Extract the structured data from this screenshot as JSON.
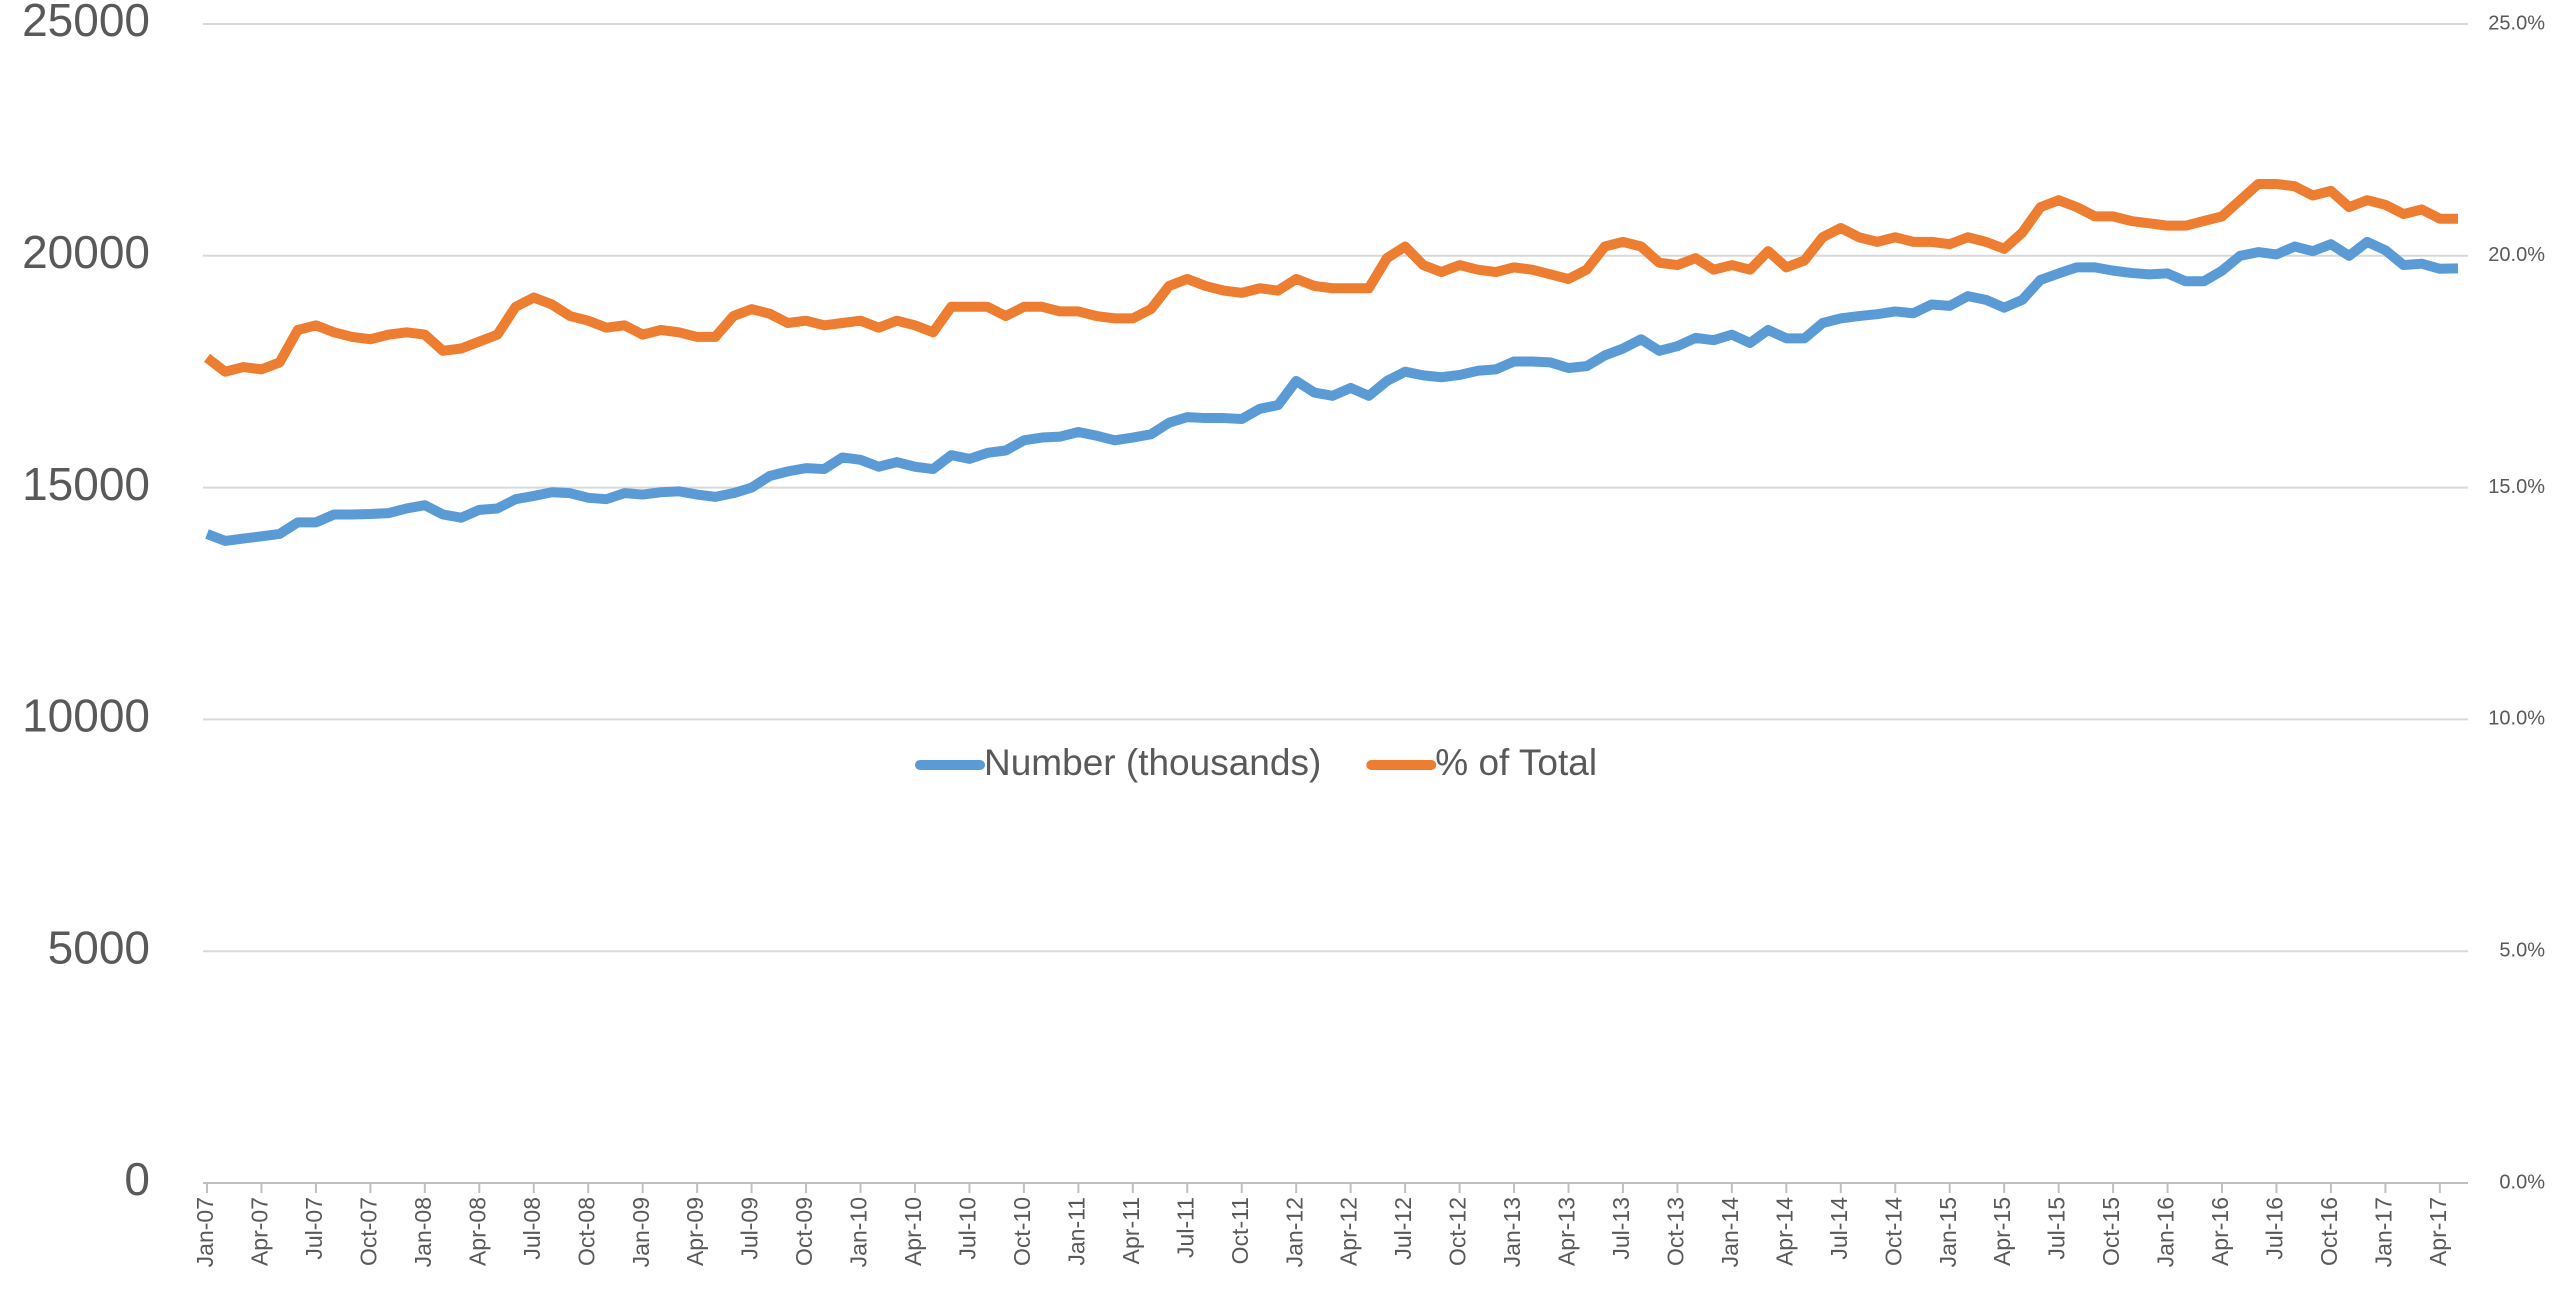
{
  "chart_data": {
    "type": "line",
    "categories": [
      "Jan-07",
      null,
      null,
      "Apr-07",
      null,
      null,
      "Jul-07",
      null,
      null,
      "Oct-07",
      null,
      null,
      "Jan-08",
      null,
      null,
      "Apr-08",
      null,
      null,
      "Jul-08",
      null,
      null,
      "Oct-08",
      null,
      null,
      "Jan-09",
      null,
      null,
      "Apr-09",
      null,
      null,
      "Jul-09",
      null,
      null,
      "Oct-09",
      null,
      null,
      "Jan-10",
      null,
      null,
      "Apr-10",
      null,
      null,
      "Jul-10",
      null,
      null,
      "Oct-10",
      null,
      null,
      "Jan-11",
      null,
      null,
      "Apr-11",
      null,
      null,
      "Jul-11",
      null,
      null,
      "Oct-11",
      null,
      null,
      "Jan-12",
      null,
      null,
      "Apr-12",
      null,
      null,
      "Jul-12",
      null,
      null,
      "Oct-12",
      null,
      null,
      "Jan-13",
      null,
      null,
      "Apr-13",
      null,
      null,
      "Jul-13",
      null,
      null,
      "Oct-13",
      null,
      null,
      "Jan-14",
      null,
      null,
      "Apr-14",
      null,
      null,
      "Jul-14",
      null,
      null,
      "Oct-14",
      null,
      null,
      "Jan-15",
      null,
      null,
      "Apr-15",
      null,
      null,
      "Jul-15",
      null,
      null,
      "Oct-15",
      null,
      null,
      "Jan-16",
      null,
      null,
      "Apr-16",
      null,
      null,
      "Jul-16",
      null,
      null,
      "Oct-16",
      null,
      null,
      "Jan-17",
      null,
      null,
      "Apr-17",
      null
    ],
    "series": [
      {
        "name": "Number (thousands)",
        "color": "#5b9bd5",
        "values": [
          14000,
          13850,
          13900,
          13950,
          14000,
          14250,
          14250,
          14420,
          14420,
          14430,
          14450,
          14550,
          14620,
          14420,
          14350,
          14520,
          14550,
          14750,
          14820,
          14900,
          14880,
          14780,
          14750,
          14880,
          14850,
          14900,
          14920,
          14850,
          14800,
          14880,
          15000,
          15250,
          15350,
          15420,
          15400,
          15650,
          15600,
          15450,
          15550,
          15450,
          15400,
          15700,
          15620,
          15750,
          15800,
          16020,
          16080,
          16100,
          16200,
          16120,
          16020,
          16080,
          16150,
          16400,
          16520,
          16500,
          16500,
          16480,
          16700,
          16780,
          17300,
          17050,
          16980,
          17150,
          16980,
          17300,
          17500,
          17420,
          17380,
          17430,
          17520,
          17550,
          17720,
          17720,
          17700,
          17580,
          17620,
          17850,
          18000,
          18200,
          17950,
          18050,
          18230,
          18180,
          18300,
          18120,
          18400,
          18220,
          18220,
          18550,
          18650,
          18700,
          18740,
          18800,
          18760,
          18950,
          18920,
          19130,
          19050,
          18880,
          19050,
          19480,
          19620,
          19750,
          19750,
          19680,
          19630,
          19600,
          19620,
          19450,
          19450,
          19680,
          20000,
          20080,
          20030,
          20200,
          20100,
          20250,
          20000,
          20300,
          20120,
          19800,
          19830,
          19720,
          19730
        ]
      },
      {
        "name": "% of Total",
        "color": "#ed7d31",
        "axis": "y2",
        "values": [
          17.8,
          17.5,
          17.6,
          17.55,
          17.7,
          18.4,
          18.5,
          18.35,
          18.25,
          18.2,
          18.3,
          18.35,
          18.3,
          17.95,
          18.0,
          18.15,
          18.3,
          18.9,
          19.1,
          18.95,
          18.7,
          18.6,
          18.45,
          18.5,
          18.3,
          18.4,
          18.35,
          18.25,
          18.25,
          18.7,
          18.85,
          18.75,
          18.55,
          18.6,
          18.5,
          18.55,
          18.6,
          18.45,
          18.6,
          18.5,
          18.35,
          18.9,
          18.9,
          18.9,
          18.7,
          18.9,
          18.9,
          18.8,
          18.8,
          18.7,
          18.65,
          18.65,
          18.85,
          19.35,
          19.5,
          19.35,
          19.25,
          19.2,
          19.3,
          19.25,
          19.5,
          19.35,
          19.3,
          19.3,
          19.3,
          19.95,
          20.2,
          19.8,
          19.65,
          19.8,
          19.7,
          19.65,
          19.75,
          19.7,
          19.6,
          19.5,
          19.7,
          20.2,
          20.3,
          20.2,
          19.85,
          19.8,
          19.95,
          19.7,
          19.8,
          19.7,
          20.1,
          19.75,
          19.9,
          20.4,
          20.6,
          20.4,
          20.3,
          20.4,
          20.3,
          20.3,
          20.25,
          20.4,
          20.3,
          20.15,
          20.5,
          21.05,
          21.2,
          21.05,
          20.85,
          20.85,
          20.75,
          20.7,
          20.65,
          20.65,
          20.75,
          20.85,
          21.2,
          21.55,
          21.55,
          21.5,
          21.3,
          21.4,
          21.05,
          21.2,
          21.1,
          20.9,
          21.0,
          20.8,
          20.8
        ]
      }
    ],
    "ylim": [
      0,
      25000
    ],
    "yticks": [
      0,
      5000,
      10000,
      15000,
      20000,
      25000
    ],
    "y2lim": [
      0,
      25
    ],
    "y2ticks": [
      {
        "value": 0,
        "label": "0.0%"
      },
      {
        "value": 5,
        "label": "5.0%"
      },
      {
        "value": 10,
        "label": "10.0%"
      },
      {
        "value": 15,
        "label": "15.0%"
      },
      {
        "value": 20,
        "label": "20.0%"
      },
      {
        "value": 25,
        "label": "25.0%"
      }
    ],
    "grid": true,
    "legend": "center"
  }
}
